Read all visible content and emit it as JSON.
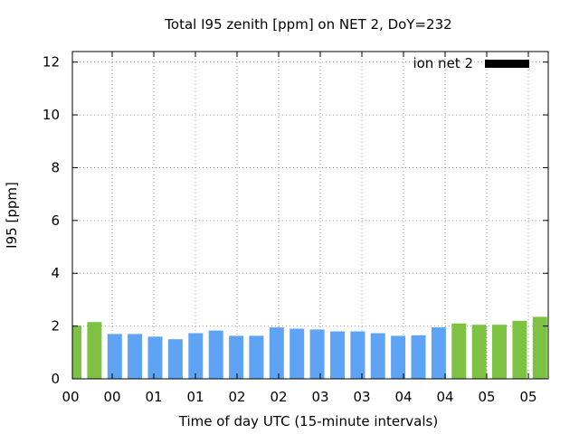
{
  "chart_data": {
    "type": "bar",
    "title": "Total I95 zenith [ppm] on NET 2, DoY=232",
    "xlabel": "Time of day UTC (15-minute intervals)",
    "ylabel": "I95 [ppm]",
    "ylim": [
      0,
      12.4
    ],
    "yticks": [
      "0",
      "2",
      "4",
      "6",
      "8",
      "10",
      "12"
    ],
    "xticks": [
      "00",
      "00",
      "01",
      "01",
      "02",
      "02",
      "03",
      "03",
      "04",
      "04",
      "05",
      "05"
    ],
    "grid": true,
    "legend": {
      "label": "ion net 2",
      "position": "top-right",
      "swatch_color": "#000000"
    },
    "colors": {
      "green": "#7dc242",
      "blue": "#5fa3f5"
    },
    "bars": [
      {
        "value": 2.02,
        "color": "green"
      },
      {
        "value": 2.15,
        "color": "green"
      },
      {
        "value": 1.7,
        "color": "blue"
      },
      {
        "value": 1.7,
        "color": "blue"
      },
      {
        "value": 1.6,
        "color": "blue"
      },
      {
        "value": 1.5,
        "color": "blue"
      },
      {
        "value": 1.73,
        "color": "blue"
      },
      {
        "value": 1.83,
        "color": "blue"
      },
      {
        "value": 1.63,
        "color": "blue"
      },
      {
        "value": 1.63,
        "color": "blue"
      },
      {
        "value": 1.95,
        "color": "blue"
      },
      {
        "value": 1.9,
        "color": "blue"
      },
      {
        "value": 1.87,
        "color": "blue"
      },
      {
        "value": 1.8,
        "color": "blue"
      },
      {
        "value": 1.8,
        "color": "blue"
      },
      {
        "value": 1.73,
        "color": "blue"
      },
      {
        "value": 1.63,
        "color": "blue"
      },
      {
        "value": 1.65,
        "color": "blue"
      },
      {
        "value": 1.95,
        "color": "blue"
      },
      {
        "value": 2.1,
        "color": "green"
      },
      {
        "value": 2.05,
        "color": "green"
      },
      {
        "value": 2.05,
        "color": "green"
      },
      {
        "value": 2.2,
        "color": "green"
      },
      {
        "value": 2.35,
        "color": "green"
      }
    ]
  }
}
